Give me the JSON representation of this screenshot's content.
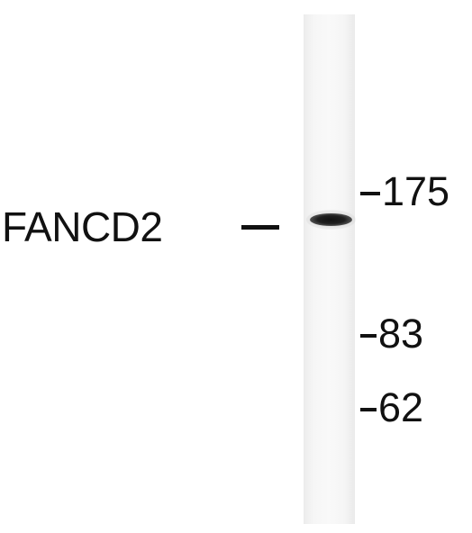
{
  "blot": {
    "protein_label": "FANCD2",
    "markers": [
      {
        "value": "175"
      },
      {
        "value": "83"
      },
      {
        "value": "62"
      }
    ]
  }
}
